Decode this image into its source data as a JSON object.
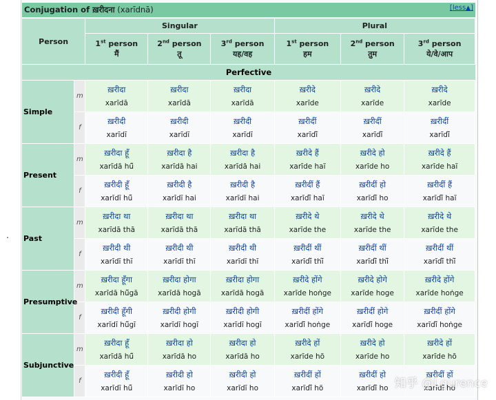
{
  "title": {
    "prefix": "Conjugation of ",
    "verb": "ख़रीदना",
    "translit": " (xarīdnā)"
  },
  "toggle": {
    "label": "less",
    "icon": "▲"
  },
  "header": {
    "person": "Person",
    "singular": "Singular",
    "plural": "Plural",
    "columns": [
      {
        "num": "1",
        "sup": "st",
        "word": " person",
        "pron": "मैं"
      },
      {
        "num": "2",
        "sup": "nd",
        "word": " person",
        "pron": "तू"
      },
      {
        "num": "3",
        "sup": "rd",
        "word": " person",
        "pron": "यह/वह"
      },
      {
        "num": "1",
        "sup": "st",
        "word": " person",
        "pron": "हम"
      },
      {
        "num": "2",
        "sup": "nd",
        "word": " person",
        "pron": "तुम"
      },
      {
        "num": "3",
        "sup": "rd",
        "word": " person",
        "pron": "ये/वे/आप"
      }
    ]
  },
  "section": "Perfective",
  "rows": [
    {
      "label": "Simple",
      "m": [
        [
          "ख़रीदा",
          "xarīdā"
        ],
        [
          "ख़रीदा",
          "xarīdā"
        ],
        [
          "ख़रीदा",
          "xarīdā"
        ],
        [
          "ख़रीदे",
          "xarīde"
        ],
        [
          "ख़रीदे",
          "xarīde"
        ],
        [
          "ख़रीदे",
          "xarīde"
        ]
      ],
      "f": [
        [
          "ख़रीदी",
          "xarīdī"
        ],
        [
          "ख़रीदी",
          "xarīdī"
        ],
        [
          "ख़रीदी",
          "xarīdī"
        ],
        [
          "ख़रीदीं",
          "xarīdī̃"
        ],
        [
          "ख़रीदीं",
          "xarīdī̃"
        ],
        [
          "ख़रीदीं",
          "xarīdī̃"
        ]
      ]
    },
    {
      "label": "Present",
      "m": [
        [
          "ख़रीदा हूँ",
          "xarīdā hū̃"
        ],
        [
          "ख़रीदा है",
          "xarīdā hai"
        ],
        [
          "ख़रीदा है",
          "xarīdā hai"
        ],
        [
          "ख़रीदे हैं",
          "xarīde haĩ"
        ],
        [
          "ख़रीदे हो",
          "xarīde ho"
        ],
        [
          "ख़रीदे हैं",
          "xarīde haĩ"
        ]
      ],
      "f": [
        [
          "ख़रीदी हूँ",
          "xarīdī hū̃"
        ],
        [
          "ख़रीदी है",
          "xarīdī hai"
        ],
        [
          "ख़रीदी है",
          "xarīdī hai"
        ],
        [
          "ख़रीदीं हैं",
          "xarīdī̃ haĩ"
        ],
        [
          "ख़रीदीं हो",
          "xarīdī̃ ho"
        ],
        [
          "ख़रीदीं हैं",
          "xarīdī̃ haĩ"
        ]
      ]
    },
    {
      "label": "Past",
      "m": [
        [
          "ख़रीदा था",
          "xarīdā thā"
        ],
        [
          "ख़रीदा था",
          "xarīdā thā"
        ],
        [
          "ख़रीदा था",
          "xarīdā thā"
        ],
        [
          "ख़रीदे थे",
          "xarīde the"
        ],
        [
          "ख़रीदे थे",
          "xarīde the"
        ],
        [
          "ख़रीदे थे",
          "xarīde the"
        ]
      ],
      "f": [
        [
          "ख़रीदी थी",
          "xarīdī thī"
        ],
        [
          "ख़रीदी थी",
          "xarīdī thī"
        ],
        [
          "ख़रीदी थी",
          "xarīdī thī"
        ],
        [
          "ख़रीदीं थीं",
          "xarīdī̃ thī̃"
        ],
        [
          "ख़रीदीं थीं",
          "xarīdī̃ thī̃"
        ],
        [
          "ख़रीदीं थीं",
          "xarīdī̃ thī̃"
        ]
      ]
    },
    {
      "label": "Presumptive",
      "m": [
        [
          "ख़रीदा हूँगा",
          "xarīdā hū̃gā"
        ],
        [
          "ख़रीदा होगा",
          "xarīdā hogā"
        ],
        [
          "ख़रीदा होगा",
          "xarīdā hogā"
        ],
        [
          "ख़रीदे होंगे",
          "xarīde hoṅge"
        ],
        [
          "ख़रीदे होगे",
          "xarīde hoge"
        ],
        [
          "ख़रीदे होंगे",
          "xarīde hoṅge"
        ]
      ],
      "f": [
        [
          "ख़रीदी हूँगी",
          "xarīdī hū̃gī"
        ],
        [
          "ख़रीदी होगी",
          "xarīdī hogī"
        ],
        [
          "ख़रीदी होगी",
          "xarīdī hogī"
        ],
        [
          "ख़रीदीं होंगे",
          "xarīdī̃ hoṅge"
        ],
        [
          "ख़रीदीं होगे",
          "xarīdī̃ hoge"
        ],
        [
          "ख़रीदीं होंगे",
          "xarīdī̃ hoṅge"
        ]
      ]
    },
    {
      "label": "Subjunctive",
      "m": [
        [
          "ख़रीदा हूँ",
          "xarīdā hū̃"
        ],
        [
          "ख़रीदा हो",
          "xarīdā ho"
        ],
        [
          "ख़रीदा हो",
          "xarīdā ho"
        ],
        [
          "ख़रीदे हों",
          "xarīde hõ"
        ],
        [
          "ख़रीदे हो",
          "xarīde ho"
        ],
        [
          "ख़रीदे हों",
          "xarīde hõ"
        ]
      ],
      "f": [
        [
          "ख़रीदी हूँ",
          "xarīdī hū̃"
        ],
        [
          "ख़रीदी हो",
          "xarīdī ho"
        ],
        [
          "ख़रीदी हो",
          "xarīdī ho"
        ],
        [
          "ख़रीदीं हों",
          "xarīdī̃ hõ"
        ],
        [
          "ख़रीदीं हो",
          "xarīdī̃ ho"
        ],
        [
          "ख़रीदीं हों",
          "xarīdī̃ hõ"
        ]
      ]
    }
  ],
  "gender": {
    "m": "m",
    "f": "f"
  },
  "watermark": "知乎 @Lgurence"
}
